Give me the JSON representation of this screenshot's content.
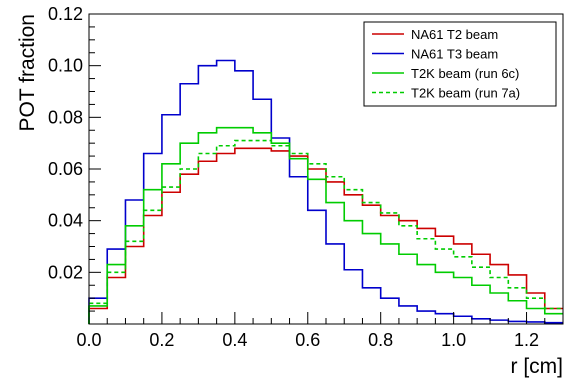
{
  "chart_data": {
    "type": "line",
    "step": true,
    "xlabel": "r [cm]",
    "ylabel": "POT fraction",
    "xlim": [
      0.0,
      1.3
    ],
    "ylim": [
      0.0,
      0.12
    ],
    "x_ticks": [
      0.0,
      0.2,
      0.4,
      0.6,
      0.8,
      1.0,
      1.2
    ],
    "x_tick_labels": [
      "0.0",
      "0.2",
      "0.4",
      "0.6",
      "0.8",
      "1.0",
      "1.2"
    ],
    "y_ticks": [
      0.02,
      0.04,
      0.06,
      0.08,
      0.1,
      0.12
    ],
    "y_tick_labels": [
      "0.02",
      "0.04",
      "0.06",
      "0.08",
      "0.10",
      "0.12"
    ],
    "grid": false,
    "legend_position": "top-right",
    "bin_edges": [
      0.0,
      0.05,
      0.1,
      0.15,
      0.2,
      0.25,
      0.3,
      0.35,
      0.4,
      0.45,
      0.5,
      0.55,
      0.6,
      0.65,
      0.7,
      0.75,
      0.8,
      0.85,
      0.9,
      0.95,
      1.0,
      1.05,
      1.1,
      1.15,
      1.2,
      1.25,
      1.3
    ],
    "series": [
      {
        "name": "NA61 T2 beam",
        "color": "#cc0000",
        "dash": "solid",
        "values": [
          0.006,
          0.018,
          0.03,
          0.042,
          0.051,
          0.058,
          0.063,
          0.066,
          0.068,
          0.068,
          0.067,
          0.065,
          0.06,
          0.055,
          0.05,
          0.046,
          0.042,
          0.04,
          0.037,
          0.034,
          0.031,
          0.027,
          0.023,
          0.019,
          0.012,
          0.006
        ]
      },
      {
        "name": "NA61 T3 beam",
        "color": "#0000cc",
        "dash": "solid",
        "values": [
          0.01,
          0.029,
          0.048,
          0.066,
          0.081,
          0.093,
          0.1,
          0.102,
          0.098,
          0.087,
          0.072,
          0.057,
          0.044,
          0.031,
          0.021,
          0.014,
          0.01,
          0.007,
          0.005,
          0.004,
          0.003,
          0.002,
          0.0015,
          0.001,
          0.0008,
          0.0005
        ]
      },
      {
        "name": "T2K beam (run 6c)",
        "color": "#00cc00",
        "dash": "solid",
        "values": [
          0.007,
          0.023,
          0.038,
          0.052,
          0.062,
          0.07,
          0.074,
          0.076,
          0.076,
          0.074,
          0.07,
          0.064,
          0.056,
          0.047,
          0.04,
          0.035,
          0.031,
          0.027,
          0.023,
          0.02,
          0.018,
          0.015,
          0.012,
          0.009,
          0.006,
          0.004
        ]
      },
      {
        "name": "T2K beam (run 7a)",
        "color": "#00cc00",
        "dash": "dashed",
        "values": [
          0.008,
          0.02,
          0.032,
          0.044,
          0.053,
          0.06,
          0.066,
          0.069,
          0.071,
          0.071,
          0.069,
          0.066,
          0.062,
          0.057,
          0.052,
          0.047,
          0.043,
          0.038,
          0.033,
          0.029,
          0.026,
          0.022,
          0.018,
          0.014,
          0.01,
          0.006
        ]
      }
    ]
  }
}
